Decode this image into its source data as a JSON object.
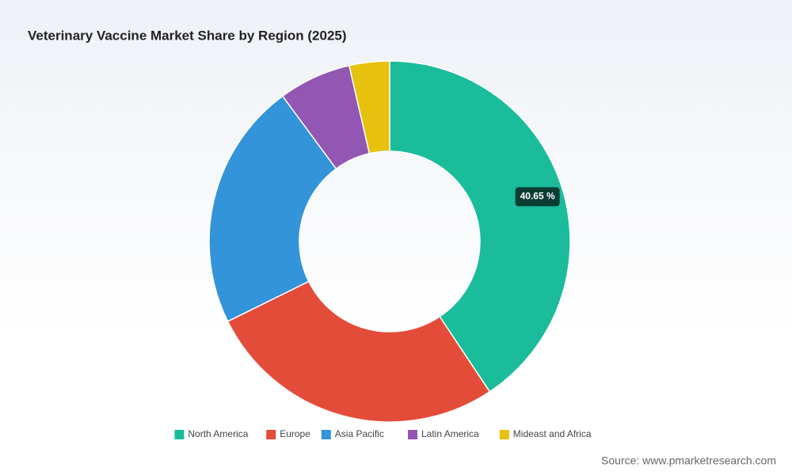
{
  "chart_data": {
    "type": "donut",
    "title": "Veterinary Vaccine Market Share by Region (2025)",
    "categories": [
      "North America",
      "Europe",
      "Asia Pacific",
      "Latin America",
      "Mideast and Africa"
    ],
    "values": [
      40.65,
      27.05,
      22.2,
      6.5,
      3.6
    ],
    "value_labels": [
      "40.65 %",
      null,
      null,
      null,
      null
    ],
    "colors": [
      "#1abc9c",
      "#e44c3a",
      "#3394d9",
      "#9256b3",
      "#e6c10e"
    ],
    "legend": "bottom",
    "source": "Source: www.pmarketresearch.com"
  }
}
